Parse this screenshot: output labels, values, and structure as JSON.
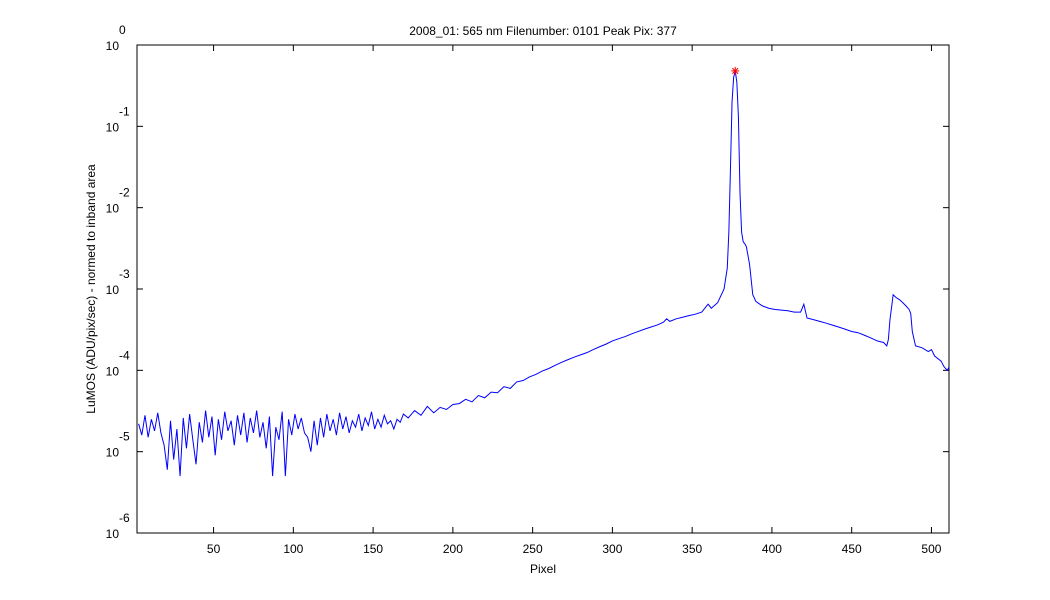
{
  "chart_data": {
    "type": "line",
    "title": "2008_01: 565 nm  Filenumber: 0101 Peak Pix: 377",
    "xlabel": "Pixel",
    "ylabel": "LuMOS (ADU/pix/sec) - normed to inband area",
    "yscale": "log",
    "grid": false,
    "xlim": [
      2,
      511
    ],
    "ylim": [
      1e-06,
      1
    ],
    "xticks": [
      50,
      100,
      150,
      200,
      250,
      300,
      350,
      400,
      450,
      500
    ],
    "yticks": [
      {
        "value": 1e-06,
        "label": "10",
        "exponent": "-6"
      },
      {
        "value": 1e-05,
        "label": "10",
        "exponent": "-5"
      },
      {
        "value": 0.0001,
        "label": "10",
        "exponent": "-4"
      },
      {
        "value": 0.001,
        "label": "10",
        "exponent": "-3"
      },
      {
        "value": 0.01,
        "label": "10",
        "exponent": "-2"
      },
      {
        "value": 0.1,
        "label": "10",
        "exponent": "-1"
      },
      {
        "value": 1,
        "label": "10",
        "exponent": "0"
      }
    ],
    "series": [
      {
        "color": "#0000ff",
        "x": [
          3,
          5,
          7,
          9,
          11,
          13,
          15,
          17,
          19,
          21,
          23,
          25,
          27,
          29,
          31,
          33,
          35,
          37,
          39,
          41,
          43,
          45,
          47,
          49,
          51,
          53,
          55,
          57,
          59,
          61,
          63,
          65,
          67,
          69,
          71,
          73,
          75,
          77,
          79,
          81,
          83,
          85,
          87,
          89,
          91,
          93,
          95,
          97,
          99,
          101,
          103,
          105,
          107,
          109,
          111,
          113,
          115,
          117,
          119,
          121,
          123,
          125,
          127,
          129,
          131,
          133,
          135,
          137,
          139,
          141,
          143,
          145,
          147,
          149,
          151,
          153,
          155,
          157,
          159,
          161,
          163,
          165,
          167,
          169,
          172,
          176,
          180,
          184,
          188,
          192,
          196,
          200,
          204,
          208,
          212,
          216,
          220,
          224,
          228,
          232,
          236,
          240,
          244,
          248,
          252,
          256,
          260,
          264,
          268,
          272,
          276,
          280,
          284,
          288,
          292,
          296,
          300,
          304,
          308,
          312,
          316,
          320,
          324,
          328,
          332,
          334,
          336,
          340,
          344,
          348,
          352,
          356,
          360,
          362,
          366,
          370,
          372,
          373,
          374,
          375,
          376,
          377,
          378,
          379,
          380,
          381,
          382,
          383,
          384,
          386,
          388,
          390,
          394,
          398,
          402,
          406,
          410,
          414,
          418,
          420,
          422,
          426,
          430,
          434,
          438,
          442,
          446,
          450,
          454,
          458,
          462,
          466,
          470,
          472,
          473,
          474,
          476,
          478,
          480,
          482,
          484,
          486,
          487,
          488,
          490,
          494,
          498,
          500,
          502,
          506,
          508,
          510,
          511
        ],
        "values": [
          2.2e-05,
          1.6e-05,
          2.8e-05,
          1.5e-05,
          2.5e-05,
          1.8e-05,
          3e-05,
          1.7e-05,
          1.2e-05,
          6e-06,
          2.4e-05,
          8e-06,
          1.9e-05,
          5e-06,
          2.6e-05,
          1.1e-05,
          2.9e-05,
          1.4e-05,
          7e-06,
          2.3e-05,
          1.3e-05,
          3.2e-05,
          1.5e-05,
          2.7e-05,
          9e-06,
          2.5e-05,
          1.4e-05,
          3.1e-05,
          1.8e-05,
          2.4e-05,
          1.2e-05,
          2.8e-05,
          1.6e-05,
          3e-05,
          1.3e-05,
          2.6e-05,
          1.7e-05,
          3.2e-05,
          1.5e-05,
          2.3e-05,
          1.1e-05,
          2.7e-05,
          5e-06,
          2e-05,
          1.4e-05,
          3.1e-05,
          5e-06,
          2.5e-05,
          1.6e-05,
          2.9e-05,
          1.9e-05,
          2.6e-05,
          1.7e-05,
          1.5e-05,
          1e-05,
          2.4e-05,
          1.2e-05,
          2.6e-05,
          1.5e-05,
          2.9e-05,
          1.8e-05,
          2.5e-05,
          1.6e-05,
          3e-05,
          1.9e-05,
          2.7e-05,
          1.7e-05,
          2.4e-05,
          2e-05,
          2.9e-05,
          1.8e-05,
          2.6e-05,
          2.1e-05,
          3.1e-05,
          1.9e-05,
          2.5e-05,
          2e-05,
          2.8e-05,
          2.2e-05,
          2.4e-05,
          1.9e-05,
          2.5e-05,
          2.3e-05,
          2.9e-05,
          2.6e-05,
          3.2e-05,
          2.8e-05,
          3.6e-05,
          3e-05,
          3.5e-05,
          3.3e-05,
          3.8e-05,
          3.9e-05,
          4.4e-05,
          4.1e-05,
          4.9e-05,
          4.6e-05,
          5.4e-05,
          5.3e-05,
          6.3e-05,
          6e-05,
          7.2e-05,
          7.5e-05,
          8.3e-05,
          8.9e-05,
          9.8e-05,
          0.000105,
          0.000115,
          0.000125,
          0.000135,
          0.000145,
          0.000155,
          0.000165,
          0.00018,
          0.000195,
          0.00021,
          0.00023,
          0.000245,
          0.00026,
          0.00028,
          0.0003,
          0.00032,
          0.00034,
          0.00036,
          0.00039,
          0.00043,
          0.0004,
          0.00043,
          0.00045,
          0.00047,
          0.00049,
          0.00052,
          0.00065,
          0.00058,
          0.00068,
          0.001,
          0.0018,
          0.005,
          0.03,
          0.2,
          0.4,
          0.48,
          0.35,
          0.13,
          0.015,
          0.005,
          0.0038,
          0.0036,
          0.0033,
          0.002,
          0.00085,
          0.0007,
          0.00062,
          0.00058,
          0.00056,
          0.00055,
          0.00054,
          0.00052,
          0.00052,
          0.00065,
          0.00044,
          0.00042,
          0.0004,
          0.00038,
          0.00036,
          0.00034,
          0.00032,
          0.0003,
          0.00029,
          0.00027,
          0.00025,
          0.00023,
          0.00022,
          0.0002,
          0.00024,
          0.00042,
          0.00085,
          0.00078,
          0.00074,
          0.00068,
          0.00062,
          0.00056,
          0.0005,
          0.0003,
          0.0002,
          0.00019,
          0.00017,
          0.00018,
          0.00015,
          0.00013,
          0.00011,
          0.0001,
          0.00011
        ]
      }
    ],
    "peak": {
      "x": 377,
      "value": 0.48,
      "color": "#ff0000"
    }
  }
}
